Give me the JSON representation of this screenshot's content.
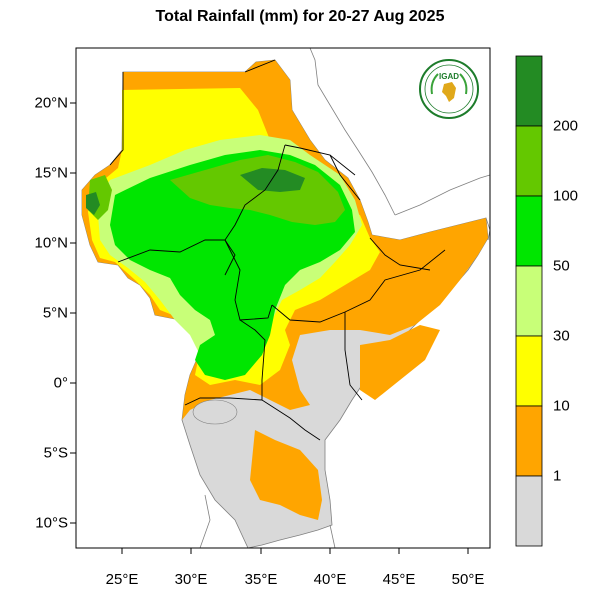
{
  "title": "Total Rainfall (mm) for 20-27 Aug 2025",
  "logo_text": "IGAD",
  "lat_labels": [
    "20°N",
    "15°N",
    "10°N",
    "5°N",
    "0°",
    "5°S",
    "10°S"
  ],
  "lon_labels": [
    "25°E",
    "30°E",
    "35°E",
    "40°E",
    "45°E",
    "50°E"
  ],
  "colorbar": {
    "labels": [
      "200",
      "100",
      "50",
      "30",
      "10",
      "1"
    ],
    "colors": [
      "#238b23",
      "#64c800",
      "#00e600",
      "#c8ff78",
      "#ffff00",
      "#ffa500",
      "#d9d9d9"
    ]
  },
  "legend_colors": {
    "none": "#d9d9d9",
    "light": "#ffa500",
    "low": "#ffff00",
    "moderate": "#c8ff78",
    "medium": "#00e600",
    "high": "#64c800",
    "very_high": "#238b23",
    "border": "#000000",
    "coast": "#808080"
  }
}
